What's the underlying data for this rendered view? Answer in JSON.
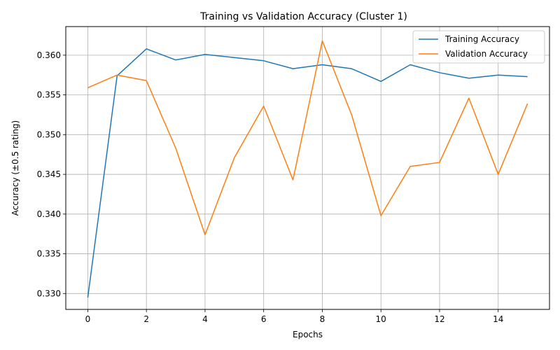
{
  "chart_data": {
    "type": "line",
    "title": "Training vs Validation Accuracy (Cluster 1)",
    "xlabel": "Epochs",
    "ylabel": "Accuracy (±0.5 rating)",
    "x": [
      0,
      1,
      2,
      3,
      4,
      5,
      6,
      7,
      8,
      9,
      10,
      11,
      12,
      13,
      14,
      15
    ],
    "xlim": [
      -0.75,
      15.75
    ],
    "ylim": [
      0.328,
      0.3636
    ],
    "xticks": [
      0,
      2,
      4,
      6,
      8,
      10,
      12,
      14
    ],
    "yticks": [
      0.33,
      0.335,
      0.34,
      0.345,
      0.35,
      0.355,
      0.36
    ],
    "xtick_labels": [
      "0",
      "2",
      "4",
      "6",
      "8",
      "10",
      "12",
      "14"
    ],
    "ytick_labels": [
      "0.330",
      "0.335",
      "0.340",
      "0.345",
      "0.350",
      "0.355",
      "0.360"
    ],
    "grid": true,
    "legend_position": "top-right",
    "series": [
      {
        "name": "Training Accuracy",
        "color": "#1f77b4",
        "values": [
          0.3295,
          0.3574,
          0.3608,
          0.3594,
          0.3601,
          0.3597,
          0.3593,
          0.3583,
          0.3588,
          0.3583,
          0.3567,
          0.3588,
          0.3578,
          0.3571,
          0.3575,
          0.3573
        ]
      },
      {
        "name": "Validation Accuracy",
        "color": "#ff7f0e",
        "values": [
          0.3559,
          0.3575,
          0.3568,
          0.3483,
          0.3374,
          0.3471,
          0.3536,
          0.3443,
          0.3618,
          0.3525,
          0.3398,
          0.346,
          0.3465,
          0.3546,
          0.345,
          0.3539
        ]
      }
    ]
  }
}
